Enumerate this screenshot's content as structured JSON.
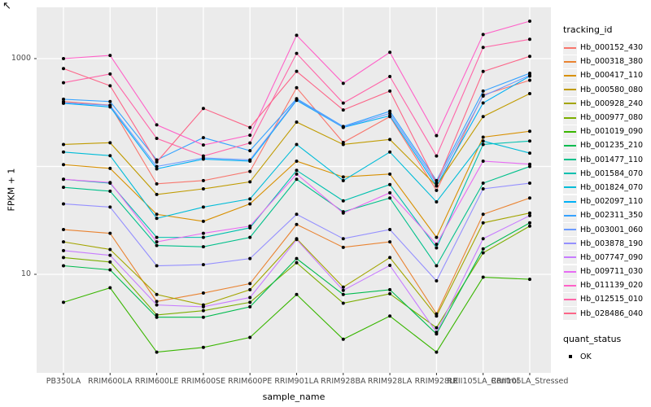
{
  "corner_glyph": "↖",
  "chart_data": {
    "type": "line",
    "title": "",
    "xlabel": "sample_name",
    "ylabel": "FPKM + 1",
    "y_scale": "log10",
    "y_ticks": [
      {
        "label": "1000",
        "value": 1000
      },
      {
        "label": "10",
        "value": 10
      }
    ],
    "y_gridlines": [
      1000,
      100,
      10
    ],
    "ylim_log": [
      0.45,
      3.47
    ],
    "grid": "on",
    "panel_background": "#EBEBEB",
    "gridline_color": "#FFFFFF",
    "point_color": "#000000",
    "legend_position": "right",
    "categories": [
      "PB350LA",
      "RRIM600LA",
      "RRIM600LE",
      "RRIM600SE",
      "RRIM600PE",
      "RRIM901LA",
      "RRIM928BA",
      "RRIM928LA",
      "RRIM928LE",
      "RRII105LA_Control",
      "RRII105LA_Stressed"
    ],
    "series": [
      {
        "name": "Hb_000152_430",
        "color": "#F8766D",
        "values": [
          400,
          370,
          69,
          74,
          90,
          537,
          167,
          290,
          60,
          460,
          630
        ]
      },
      {
        "name": "Hb_000318_380",
        "color": "#EA8331",
        "values": [
          26,
          24,
          5.6,
          6.7,
          8.2,
          29,
          17.8,
          20,
          4.3,
          36,
          51
        ]
      },
      {
        "name": "Hb_000417_110",
        "color": "#D89000",
        "values": [
          104,
          96,
          36,
          31,
          45,
          112,
          80,
          85,
          22,
          187,
          212
        ]
      },
      {
        "name": "Hb_000580_080",
        "color": "#C09B00",
        "values": [
          160,
          166,
          55,
          62,
          72,
          258,
          160,
          178,
          66,
          290,
          474
        ]
      },
      {
        "name": "Hb_000928_240",
        "color": "#A3A500",
        "values": [
          20,
          17,
          6.5,
          5.2,
          7.2,
          21.4,
          7.6,
          14.3,
          4.1,
          30,
          37
        ]
      },
      {
        "name": "Hb_000977_080",
        "color": "#7CAE00",
        "values": [
          14.3,
          13,
          4.2,
          4.6,
          5.5,
          12.8,
          5.4,
          6.6,
          3.2,
          15.8,
          28
        ]
      },
      {
        "name": "Hb_001019_090",
        "color": "#39B600",
        "values": [
          5.5,
          7.5,
          1.9,
          2.1,
          2.6,
          6.5,
          2.5,
          4.1,
          1.9,
          9.4,
          9
        ]
      },
      {
        "name": "Hb_001235_210",
        "color": "#00BB4E",
        "values": [
          12,
          11,
          4,
          4,
          5,
          14,
          6.5,
          7.2,
          2.8,
          17.2,
          30
        ]
      },
      {
        "name": "Hb_001477_110",
        "color": "#00C08B",
        "values": [
          64,
          59,
          18.5,
          18,
          22,
          76,
          38,
          51,
          12,
          70,
          100
        ]
      },
      {
        "name": "Hb_001584_070",
        "color": "#00C0AF",
        "values": [
          76,
          70,
          22,
          22,
          27,
          92,
          48,
          68,
          17.6,
          160,
          172
        ]
      },
      {
        "name": "Hb_001824_070",
        "color": "#00BCD8",
        "values": [
          136,
          126,
          33,
          42,
          50,
          160,
          74,
          136,
          47,
          172,
          133
        ]
      },
      {
        "name": "Hb_002097_110",
        "color": "#00B0F6",
        "values": [
          385,
          356,
          95,
          117,
          112,
          410,
          230,
          295,
          66,
          388,
          688
        ]
      },
      {
        "name": "Hb_002311_350",
        "color": "#35A2FF",
        "values": [
          420,
          400,
          115,
          185,
          140,
          425,
          235,
          325,
          74,
          500,
          731
        ]
      },
      {
        "name": "Hb_003001_060",
        "color": "#6C9BFF",
        "values": [
          390,
          368,
          100,
          120,
          115,
          417,
          232,
          310,
          70,
          450,
          700
        ]
      },
      {
        "name": "Hb_003878_190",
        "color": "#9590FF",
        "values": [
          45,
          42,
          12,
          12.3,
          14,
          36,
          21.4,
          26,
          8.7,
          62,
          70
        ]
      },
      {
        "name": "Hb_007747_090",
        "color": "#C77CFF",
        "values": [
          16.6,
          15,
          5.2,
          5,
          6.1,
          21,
          7.1,
          12.1,
          2.9,
          21.4,
          35
        ]
      },
      {
        "name": "Hb_009711_030",
        "color": "#E76BF3",
        "values": [
          76,
          71,
          20,
          24,
          28,
          85,
          37,
          57,
          19,
          112,
          105
        ]
      },
      {
        "name": "Hb_011139_020",
        "color": "#FF61C8",
        "values": [
          1000,
          1070,
          243,
          158,
          195,
          1646,
          590,
          1143,
          193,
          1675,
          2224
        ]
      },
      {
        "name": "Hb_012515_010",
        "color": "#FF66A8",
        "values": [
          598,
          720,
          182,
          125,
          165,
          1117,
          387,
          682,
          125,
          1270,
          1510
        ]
      },
      {
        "name": "Hb_028486_040",
        "color": "#FC6588",
        "values": [
          808,
          560,
          110,
          345,
          230,
          762,
          334,
          500,
          70,
          760,
          1050
        ]
      }
    ],
    "legend": {
      "tracking_id_title": "tracking_id",
      "quant_status_title": "quant_status",
      "quant_status_items": [
        "OK"
      ]
    }
  }
}
